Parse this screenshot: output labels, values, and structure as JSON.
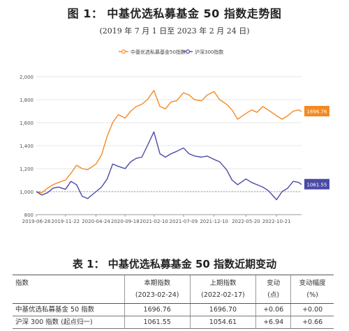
{
  "figure": {
    "title": "图 1： 中基优选私募基金 50 指数走势图",
    "subtitle": "(2019 年 7 月 1 日至 2023 年 2 月 24 日)"
  },
  "chart_data": {
    "type": "line",
    "legend": [
      "中基优选私募基金50指数",
      "沪深300指数"
    ],
    "legend_position": "top-center",
    "x_ticks": [
      "2019-06-28",
      "2019-11-22",
      "2020-04-24",
      "2020-09-18",
      "2021-02-10",
      "2021-07-09",
      "2021-12-10",
      "2022-05-20",
      "2022-10-21"
    ],
    "ylim": [
      800,
      2000
    ],
    "y_ticks": [
      "800",
      "1,000",
      "1,200",
      "1,400",
      "1,600",
      "1,800",
      "2,000"
    ],
    "reference_line": 1000,
    "grid": "horizontal",
    "series": [
      {
        "name": "中基优选私募基金50指数",
        "color": "#f28a24",
        "end_label": "1696.76",
        "x": [
          "2019-06-28",
          "2019-07-26",
          "2019-08-23",
          "2019-09-20",
          "2019-10-18",
          "2019-11-22",
          "2019-12-20",
          "2020-01-17",
          "2020-02-14",
          "2020-03-13",
          "2020-04-24",
          "2020-05-22",
          "2020-06-19",
          "2020-07-17",
          "2020-08-14",
          "2020-09-18",
          "2020-10-16",
          "2020-11-13",
          "2020-12-11",
          "2021-01-08",
          "2021-02-10",
          "2021-03-12",
          "2021-04-09",
          "2021-05-07",
          "2021-06-04",
          "2021-07-09",
          "2021-08-06",
          "2021-09-03",
          "2021-10-08",
          "2021-11-05",
          "2021-12-10",
          "2022-01-07",
          "2022-02-11",
          "2022-03-11",
          "2022-04-08",
          "2022-05-20",
          "2022-06-17",
          "2022-07-15",
          "2022-08-12",
          "2022-09-09",
          "2022-10-21",
          "2022-11-18",
          "2022-12-16",
          "2023-01-13",
          "2023-02-10",
          "2023-02-24"
        ],
        "y": [
          1000,
          990,
          1030,
          1060,
          1080,
          1100,
          1160,
          1230,
          1200,
          1190,
          1240,
          1320,
          1480,
          1600,
          1670,
          1640,
          1700,
          1740,
          1760,
          1800,
          1880,
          1740,
          1720,
          1780,
          1790,
          1860,
          1840,
          1800,
          1790,
          1840,
          1870,
          1800,
          1760,
          1710,
          1630,
          1680,
          1710,
          1690,
          1740,
          1710,
          1660,
          1630,
          1660,
          1700,
          1710,
          1697
        ]
      },
      {
        "name": "沪深300指数",
        "color": "#4a4aa6",
        "end_label": "1061.55",
        "x": [
          "2019-06-28",
          "2019-07-26",
          "2019-08-23",
          "2019-09-20",
          "2019-10-18",
          "2019-11-22",
          "2019-12-20",
          "2020-01-17",
          "2020-02-14",
          "2020-03-13",
          "2020-04-24",
          "2020-05-22",
          "2020-06-19",
          "2020-07-17",
          "2020-08-14",
          "2020-09-18",
          "2020-10-16",
          "2020-11-13",
          "2020-12-11",
          "2021-01-08",
          "2021-02-10",
          "2021-03-12",
          "2021-04-09",
          "2021-05-07",
          "2021-06-04",
          "2021-07-09",
          "2021-08-06",
          "2021-09-03",
          "2021-10-08",
          "2021-11-05",
          "2021-12-10",
          "2022-01-07",
          "2022-02-11",
          "2022-03-11",
          "2022-04-08",
          "2022-05-20",
          "2022-06-17",
          "2022-07-15",
          "2022-08-12",
          "2022-09-09",
          "2022-10-21",
          "2022-11-18",
          "2022-12-16",
          "2023-01-13",
          "2023-02-10",
          "2023-02-24"
        ],
        "y": [
          1000,
          970,
          990,
          1030,
          1040,
          1020,
          1090,
          1060,
          960,
          940,
          1000,
          1040,
          1110,
          1240,
          1220,
          1200,
          1260,
          1290,
          1300,
          1400,
          1520,
          1330,
          1300,
          1330,
          1350,
          1380,
          1330,
          1310,
          1300,
          1310,
          1280,
          1260,
          1190,
          1100,
          1060,
          1110,
          1080,
          1060,
          1040,
          1010,
          930,
          1000,
          1030,
          1090,
          1080,
          1062
        ]
      }
    ]
  },
  "table": {
    "title": "表 1： 中基优选私募基金 50 指数近期变动",
    "headers": [
      {
        "label": "指数",
        "sub": ""
      },
      {
        "label": "本期指数",
        "sub": "(2023-02-24)"
      },
      {
        "label": "上期指数",
        "sub": "(2022-02-17)"
      },
      {
        "label": "变动",
        "sub": "(点)"
      },
      {
        "label": "变动幅度",
        "sub": "(%)"
      }
    ],
    "rows": [
      [
        "中基优选私募基金 50 指数",
        "1696.76",
        "1696.70",
        "+0.06",
        "+0.00"
      ],
      [
        "沪深 300 指数 (起点归一)",
        "1061.55",
        "1054.61",
        "+6.94",
        "+0.66"
      ]
    ]
  }
}
